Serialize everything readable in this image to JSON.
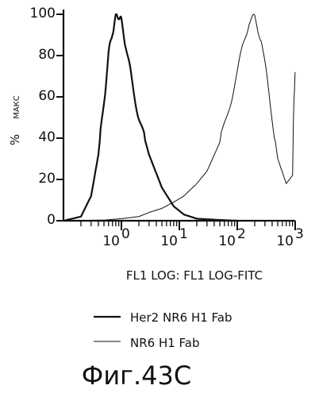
{
  "chart_data": {
    "type": "line",
    "title": "",
    "xlabel": "FL1 LOG: FL1 LOG-FITC",
    "ylabel_main": "%",
    "ylabel_sub": "МАКС",
    "x_scale": "log",
    "xlim": [
      0.1,
      1000
    ],
    "ylim": [
      0,
      100
    ],
    "grid": false,
    "y_ticks": [
      "0",
      "20",
      "40",
      "60",
      "80",
      "100"
    ],
    "x_ticks": [
      {
        "base": "10",
        "exp": "0",
        "value": 1
      },
      {
        "base": "10",
        "exp": "1",
        "value": 10
      },
      {
        "base": "10",
        "exp": "2",
        "value": 100
      },
      {
        "base": "10",
        "exp": "3",
        "value": 1000
      }
    ],
    "legend_position": "below",
    "series": [
      {
        "name": "Her2 NR6 H1 Fab",
        "stroke": "thick",
        "color": "#111111",
        "x": [
          0.1,
          0.2,
          0.3,
          0.4,
          0.5,
          0.6,
          0.7,
          0.8,
          0.9,
          1.0,
          1.2,
          1.5,
          2.0,
          3.0,
          5.0,
          8.0,
          12.0,
          20.0,
          40.0,
          100.0
        ],
        "y": [
          0,
          2,
          12,
          32,
          58,
          80,
          92,
          98,
          100,
          96,
          85,
          68,
          50,
          32,
          16,
          7,
          3,
          1,
          0.5,
          0
        ]
      },
      {
        "name": "NR6 H1 Fab",
        "stroke": "thin",
        "color": "#111111",
        "x": [
          0.1,
          0.5,
          1.0,
          2.0,
          3.0,
          5.0,
          8.0,
          12.0,
          20.0,
          30.0,
          50.0,
          80.0,
          120.0,
          160.0,
          200.0,
          260.0,
          350.0,
          500.0,
          700.0,
          900.0,
          950.0,
          1000.0
        ],
        "y": [
          0,
          0.3,
          1,
          2,
          4,
          6,
          9,
          12,
          18,
          24,
          38,
          60,
          82,
          97,
          98,
          88,
          62,
          30,
          18,
          22,
          60,
          72
        ]
      }
    ],
    "caption": "Фиг.43С"
  }
}
